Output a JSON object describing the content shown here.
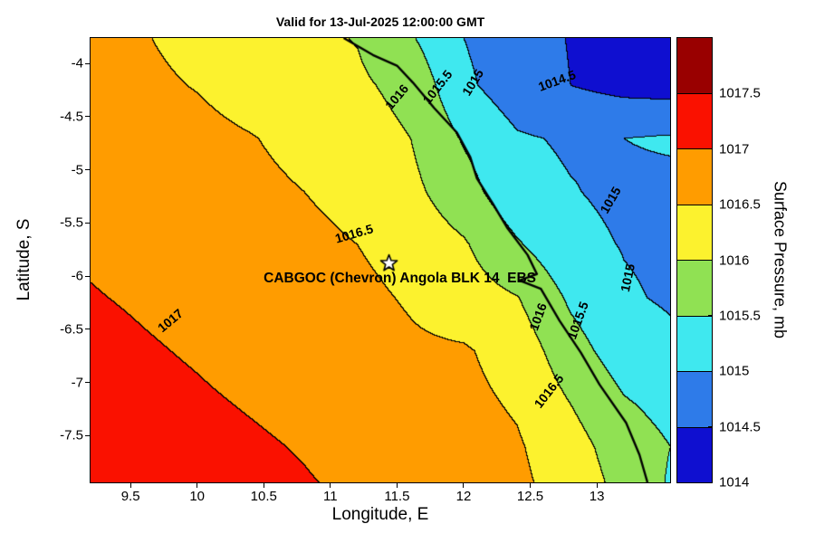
{
  "title": "Valid for 13-Jul-2025 12:00:00 GMT",
  "axes": {
    "xlabel": "Longitude, E",
    "ylabel": "Latitude, S",
    "x_range": [
      9.2,
      13.55
    ],
    "y_range": [
      -7.94,
      -3.76
    ],
    "x_tick_values": [
      9.5,
      10,
      10.5,
      11,
      11.5,
      12,
      12.5,
      13
    ],
    "x_tick_labels": [
      "9.5",
      "10",
      "10.5",
      "11",
      "11.5",
      "12",
      "12.5",
      "13"
    ],
    "y_tick_values": [
      -4,
      -4.5,
      -5,
      -5.5,
      -6,
      -6.5,
      -7,
      -7.5
    ],
    "y_tick_labels": [
      "-4",
      "-4.5",
      "-5",
      "-5.5",
      "-6",
      "-6.5",
      "-7",
      "-7.5"
    ]
  },
  "colorbar": {
    "label": "Surface Pressure, mb",
    "range": [
      1014,
      1018
    ],
    "tick_values": [
      1017.5,
      1017,
      1016.5,
      1016,
      1015.5,
      1015,
      1014.5,
      1014
    ],
    "tick_labels": [
      "1017.5",
      "1017",
      "1016.5",
      "1016",
      "1015.5",
      "1015",
      "1014.5",
      "1014"
    ],
    "band_colors_low_to_high": [
      "#0F0FD0",
      "#2E7BE9",
      "#3FE8EF",
      "#90E153",
      "#FCF22E",
      "#FF9C00",
      "#FA1100",
      "#990000"
    ]
  },
  "station": {
    "name": "CABGOC (Chevron) Angola BLK 14  EBS",
    "lon": 11.44,
    "lat": -5.88
  },
  "chart_data": {
    "type": "heatmap",
    "subtype": "filled_contour",
    "title": "Valid for 13-Jul-2025 12:00:00 GMT",
    "xlabel": "Longitude, E",
    "ylabel": "Latitude, S",
    "units": "mb",
    "level_step": 0.5,
    "contour_levels": [
      1014.5,
      1015,
      1015.5,
      1016,
      1016.5,
      1017
    ],
    "grid_lon": [
      9.2,
      9.6,
      10.0,
      10.4,
      10.8,
      11.2,
      11.6,
      12.0,
      12.4,
      12.8,
      13.2,
      13.55
    ],
    "grid_lat": [
      -3.76,
      -4.2,
      -4.7,
      -5.2,
      -5.7,
      -6.2,
      -6.7,
      -7.2,
      -7.6,
      -7.94
    ],
    "pressure_mb": [
      [
        1016.55,
        1016.52,
        1016.38,
        1016.2,
        1016.1,
        1015.98,
        1015.55,
        1015.0,
        1014.68,
        1014.48,
        1014.3,
        1014.22
      ],
      [
        1016.65,
        1016.58,
        1016.48,
        1016.32,
        1016.18,
        1016.08,
        1015.85,
        1015.1,
        1014.72,
        1014.5,
        1014.35,
        1014.3
      ],
      [
        1016.78,
        1016.7,
        1016.62,
        1016.52,
        1016.38,
        1016.22,
        1016.0,
        1015.45,
        1015.05,
        1014.95,
        1015.0,
        1015.05
      ],
      [
        1016.85,
        1016.78,
        1016.7,
        1016.6,
        1016.5,
        1016.35,
        1016.12,
        1015.7,
        1015.15,
        1015.02,
        1014.92,
        1014.9
      ],
      [
        1016.95,
        1016.88,
        1016.8,
        1016.72,
        1016.62,
        1016.5,
        1016.3,
        1016.05,
        1015.55,
        1015.12,
        1014.98,
        1014.92
      ],
      [
        1017.02,
        1016.96,
        1016.9,
        1016.82,
        1016.72,
        1016.62,
        1016.45,
        1016.22,
        1016.02,
        1015.42,
        1015.05,
        1014.95
      ],
      [
        1017.1,
        1017.03,
        1016.97,
        1016.9,
        1016.82,
        1016.72,
        1016.58,
        1016.55,
        1016.3,
        1015.7,
        1015.25,
        1015.1
      ],
      [
        1017.18,
        1017.1,
        1017.04,
        1016.98,
        1016.92,
        1016.83,
        1016.72,
        1016.62,
        1016.45,
        1016.0,
        1015.55,
        1015.35
      ],
      [
        1017.25,
        1017.18,
        1017.1,
        1017.04,
        1016.98,
        1016.9,
        1016.8,
        1016.7,
        1016.55,
        1016.2,
        1015.75,
        1015.5
      ],
      [
        1017.3,
        1017.24,
        1017.16,
        1017.08,
        1017.02,
        1016.95,
        1016.86,
        1016.76,
        1016.6,
        1016.28,
        1015.85,
        1015.45
      ]
    ],
    "contour_labels": [
      {
        "text": "1016",
        "lon": 11.5,
        "lat": -4.31,
        "rot": -50
      },
      {
        "text": "1015.5",
        "lon": 11.8,
        "lat": -4.22,
        "rot": -52
      },
      {
        "text": "1015",
        "lon": 12.07,
        "lat": -4.18,
        "rot": -58
      },
      {
        "text": "1014.5",
        "lon": 12.7,
        "lat": -4.16,
        "rot": -20
      },
      {
        "text": "1016.5",
        "lon": 11.18,
        "lat": -5.6,
        "rot": -16
      },
      {
        "text": "1017",
        "lon": 9.8,
        "lat": -6.42,
        "rot": -40
      },
      {
        "text": "1015",
        "lon": 13.1,
        "lat": -5.28,
        "rot": -60
      },
      {
        "text": "1015",
        "lon": 13.23,
        "lat": -6.02,
        "rot": -78
      },
      {
        "text": "1016",
        "lon": 12.56,
        "lat": -6.38,
        "rot": -70
      },
      {
        "text": "1015.5",
        "lon": 12.86,
        "lat": -6.42,
        "rot": -70
      },
      {
        "text": "1016.5",
        "lon": 12.64,
        "lat": -7.08,
        "rot": -52
      }
    ],
    "coastline": [
      [
        11.1,
        -3.76
      ],
      [
        11.32,
        -3.92
      ],
      [
        11.5,
        -4.02
      ],
      [
        11.62,
        -4.18
      ],
      [
        11.78,
        -4.42
      ],
      [
        11.95,
        -4.65
      ],
      [
        12.05,
        -4.88
      ],
      [
        12.1,
        -5.08
      ],
      [
        12.22,
        -5.32
      ],
      [
        12.33,
        -5.55
      ],
      [
        12.48,
        -5.8
      ],
      [
        12.55,
        -5.98
      ],
      [
        12.42,
        -6.04
      ],
      [
        12.58,
        -6.12
      ],
      [
        12.72,
        -6.42
      ],
      [
        12.88,
        -6.72
      ],
      [
        13.02,
        -7.02
      ],
      [
        13.22,
        -7.38
      ],
      [
        13.32,
        -7.68
      ],
      [
        13.38,
        -7.94
      ]
    ]
  }
}
